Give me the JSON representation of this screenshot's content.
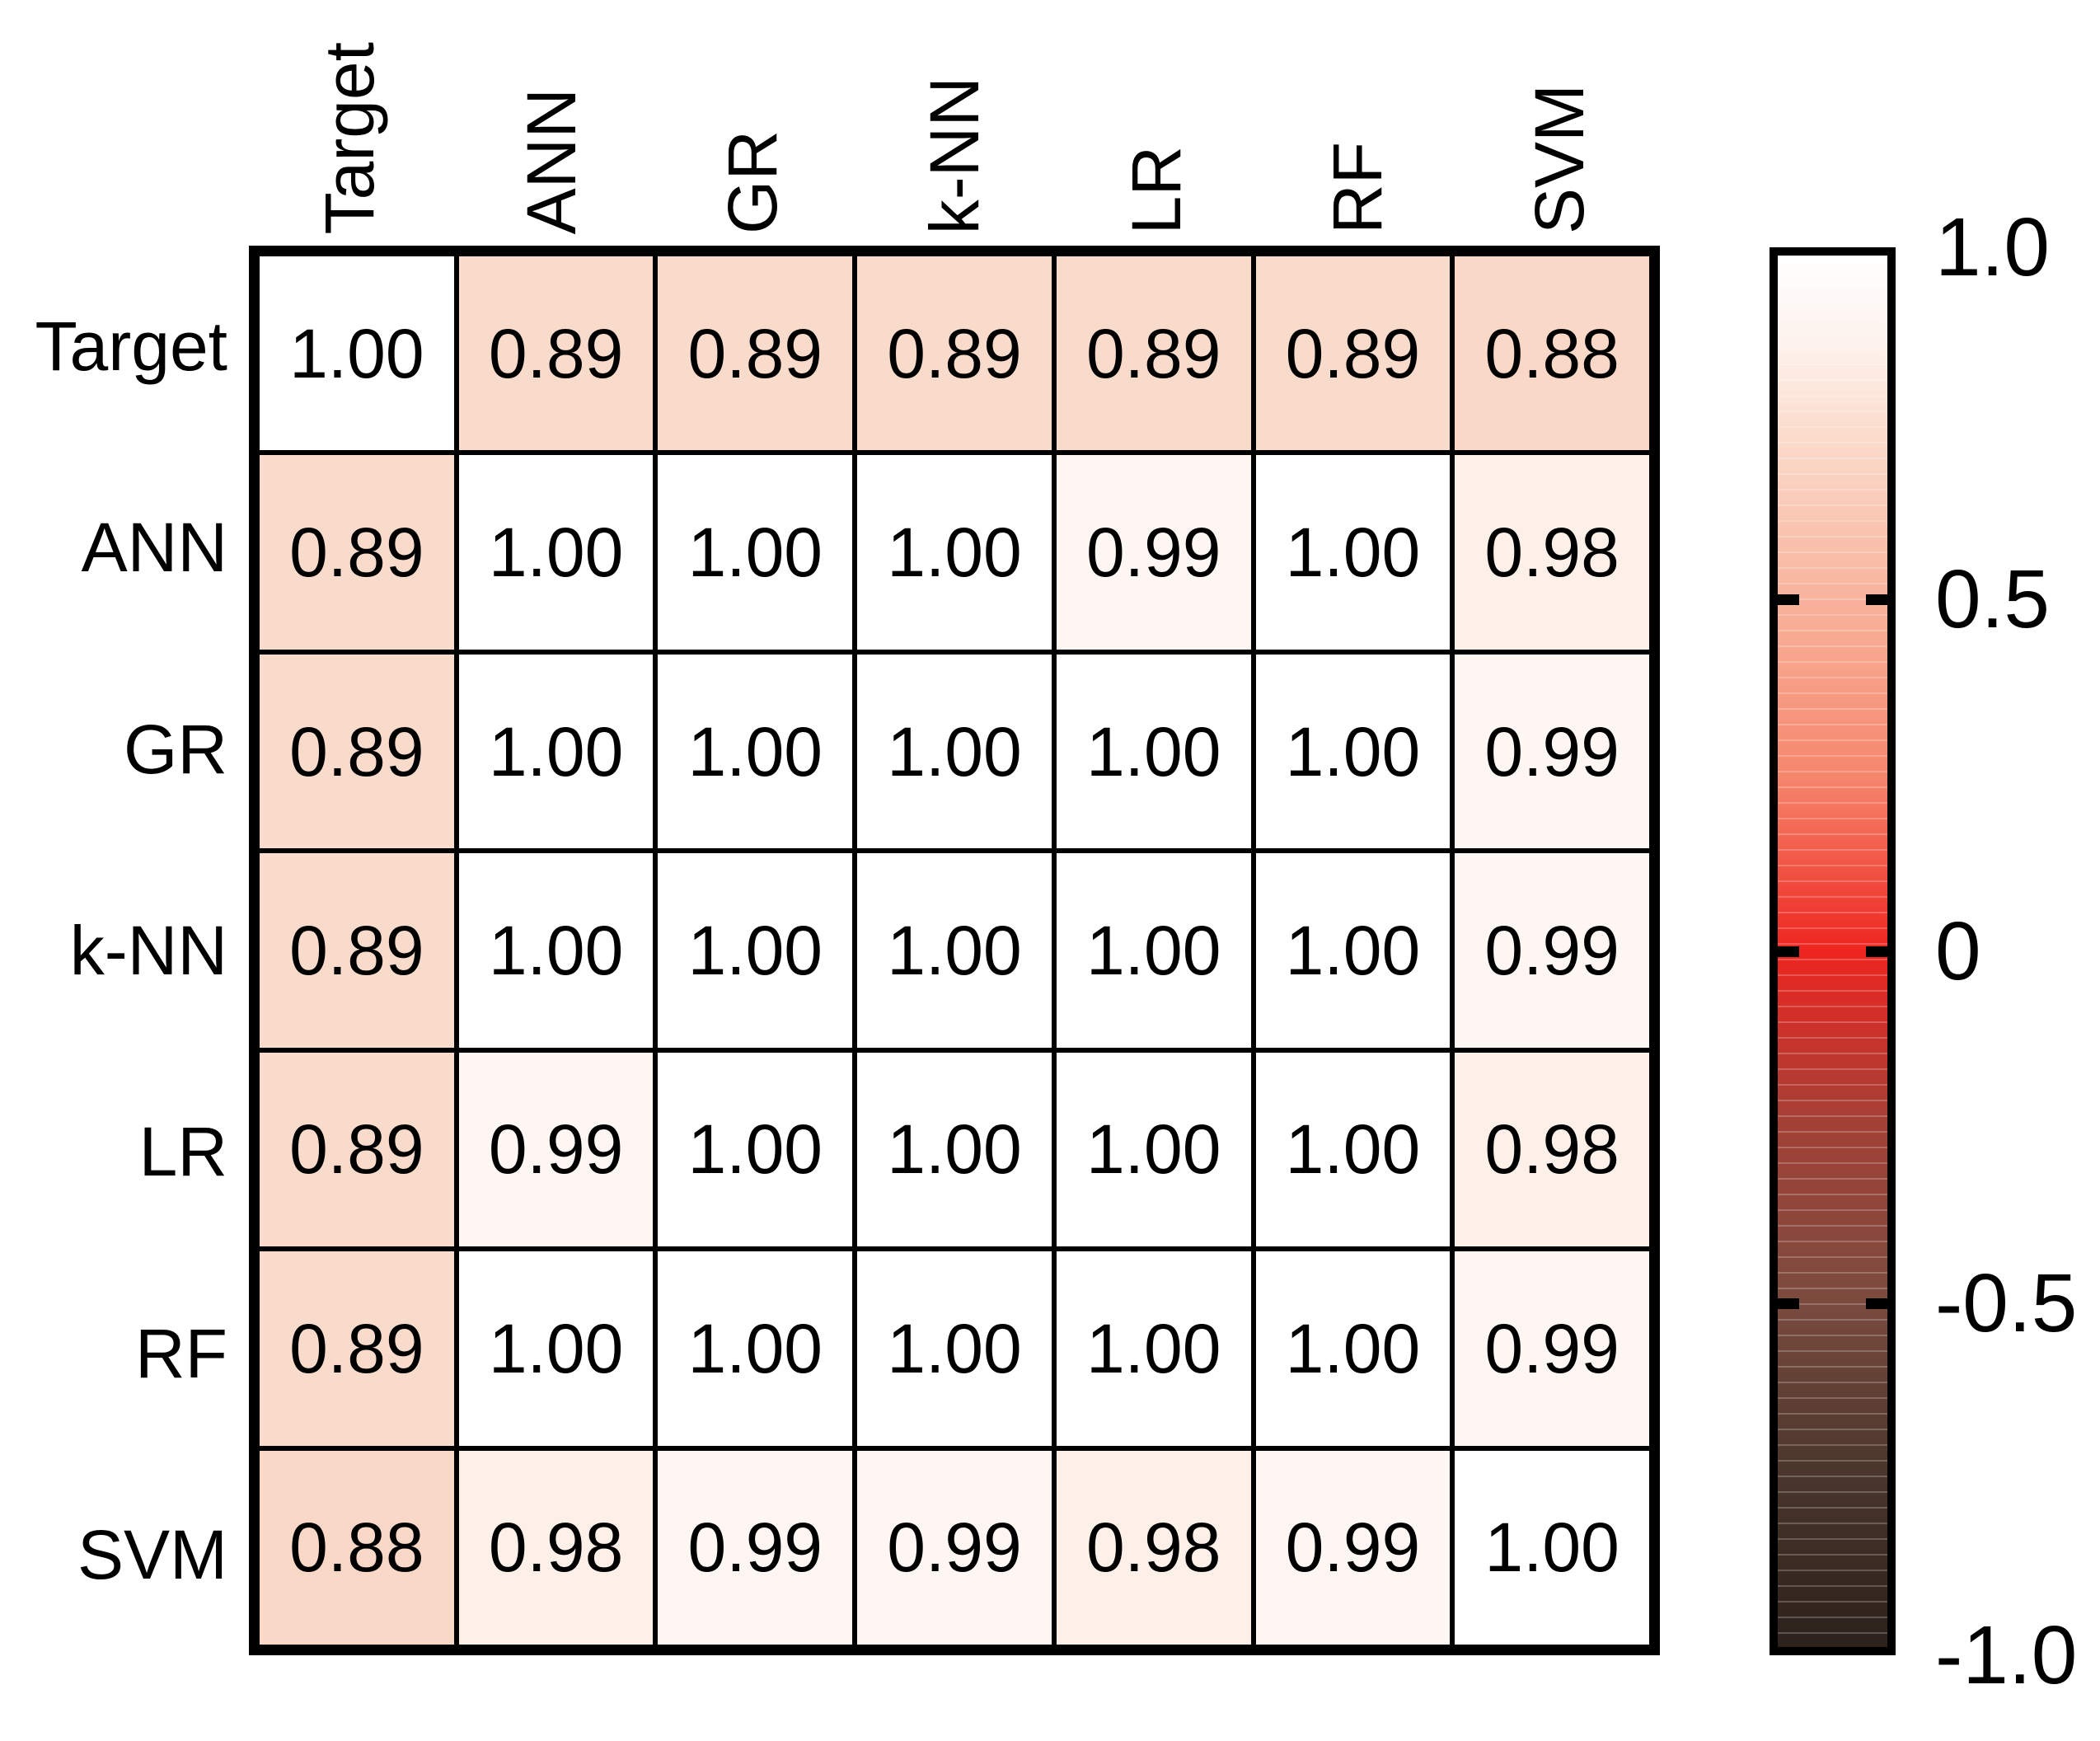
{
  "figure": {
    "type": "correlation-matrix-heatmap",
    "background": "#ffffff"
  },
  "chart_data": {
    "type": "heatmap",
    "title": "",
    "x_categories": [
      "Target",
      "ANN",
      "GR",
      "k-NN",
      "LR",
      "RF",
      "SVM"
    ],
    "y_categories": [
      "Target",
      "ANN",
      "GR",
      "k-NN",
      "LR",
      "RF",
      "SVM"
    ],
    "matrix": [
      [
        1.0,
        0.89,
        0.89,
        0.89,
        0.89,
        0.89,
        0.88
      ],
      [
        0.89,
        1.0,
        1.0,
        1.0,
        0.99,
        1.0,
        0.98
      ],
      [
        0.89,
        1.0,
        1.0,
        1.0,
        1.0,
        1.0,
        0.99
      ],
      [
        0.89,
        1.0,
        1.0,
        1.0,
        1.0,
        1.0,
        0.99
      ],
      [
        0.89,
        0.99,
        1.0,
        1.0,
        1.0,
        1.0,
        0.98
      ],
      [
        0.89,
        1.0,
        1.0,
        1.0,
        1.0,
        1.0,
        0.99
      ],
      [
        0.88,
        0.98,
        0.99,
        0.99,
        0.98,
        0.99,
        1.0
      ]
    ],
    "value_format": "2dp",
    "value_colors": {
      "1.00": "#ffffff",
      "0.99": "#fef6f2",
      "0.98": "#fdf0e9",
      "0.89": "#f9dbcb",
      "0.88": "#f9d8c7"
    },
    "colorbar": {
      "min": -1.0,
      "max": 1.0,
      "position": "right",
      "tick_labels": [
        "1.0",
        "0.5",
        "0",
        "-0.5",
        "-1.0"
      ],
      "tick_values": [
        1.0,
        0.5,
        0,
        -0.5,
        -1.0
      ],
      "inner_tick_values": [
        0.5,
        0,
        -0.5
      ],
      "gradient_stops": [
        {
          "pos": 0,
          "color": "#ffffff"
        },
        {
          "pos": 6,
          "color": "#fef3ee"
        },
        {
          "pos": 12.5,
          "color": "#fbddce"
        },
        {
          "pos": 25,
          "color": "#f8b29b"
        },
        {
          "pos": 37.5,
          "color": "#f5866c"
        },
        {
          "pos": 50,
          "color": "#ee2520"
        },
        {
          "pos": 62.5,
          "color": "#a24136"
        },
        {
          "pos": 75,
          "color": "#7b4b3e"
        },
        {
          "pos": 87.5,
          "color": "#4a362c"
        },
        {
          "pos": 100,
          "color": "#2c211b"
        }
      ]
    },
    "grid": true,
    "legend_position": "right-colorbar"
  }
}
